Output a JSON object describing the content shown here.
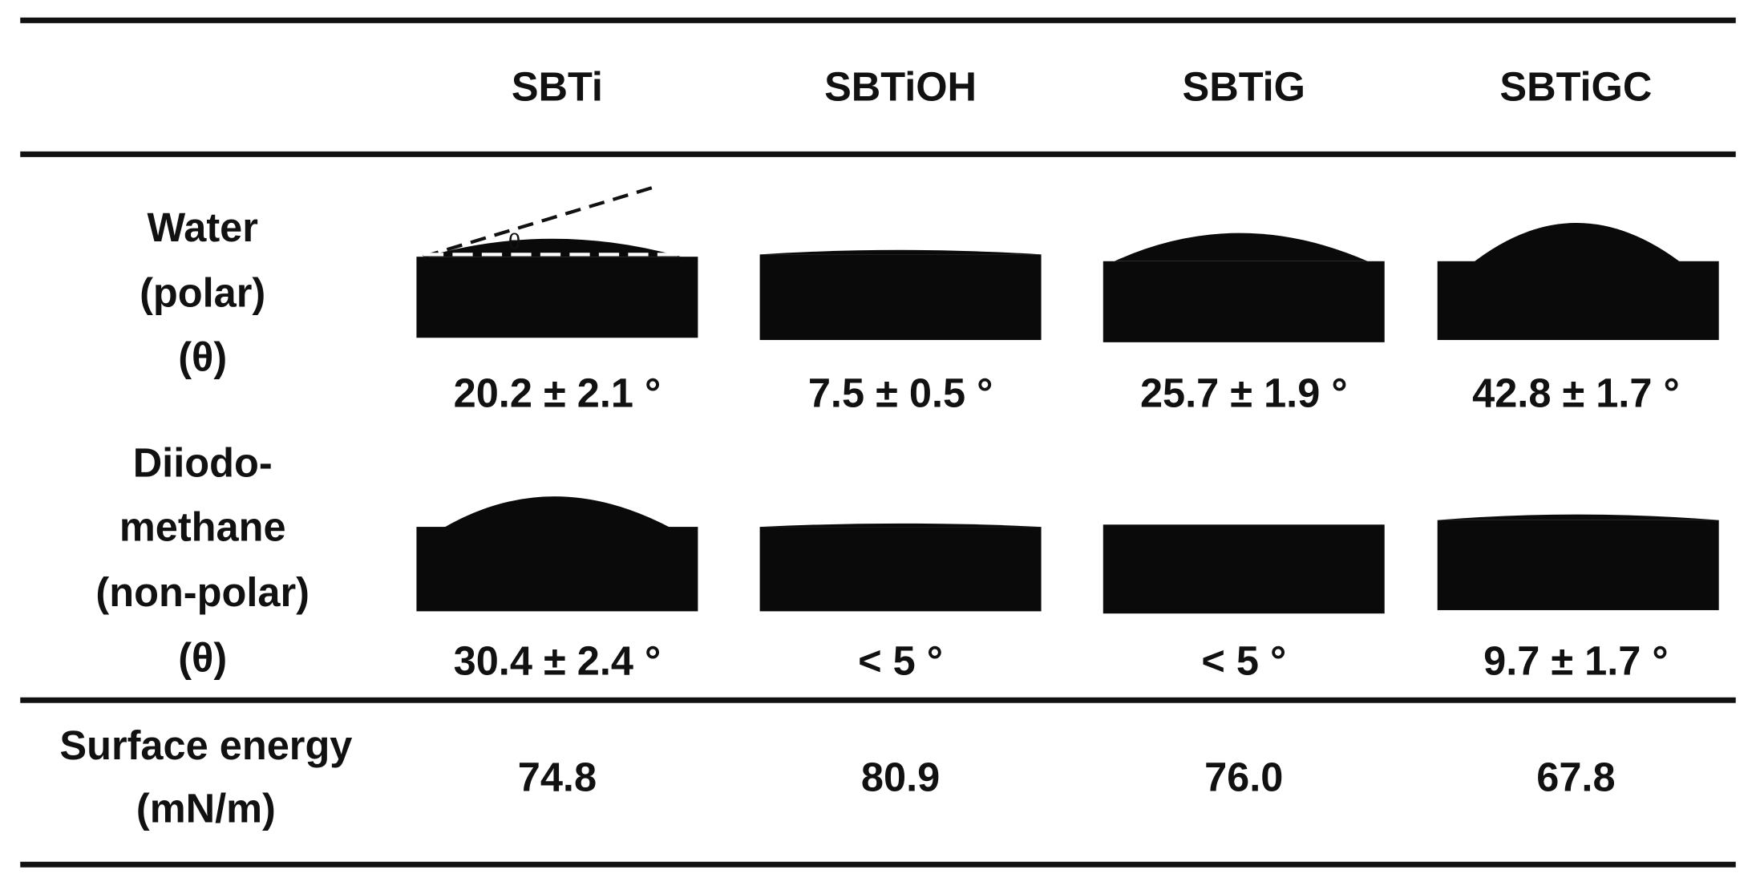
{
  "header": {
    "columns": [
      "SBTi",
      "SBTiOH",
      "SBTiG",
      "SBTiGC"
    ]
  },
  "rows": [
    {
      "label_lines": [
        "Water",
        "(polar)",
        "(θ)"
      ],
      "values": [
        "20.2 ± 2.1 °",
        "7.5 ± 0.5 °",
        "25.7 ± 1.9 °",
        "42.8 ± 1.7 °"
      ]
    },
    {
      "label_lines": [
        "Diiodo-",
        "methane",
        "(non-polar)",
        "(θ)"
      ],
      "values": [
        "30.4 ± 2.4 °",
        "< 5 °",
        "< 5 °",
        "9.7 ± 1.7 °"
      ]
    },
    {
      "label_lines": [
        "Surface energy",
        "(mN/m)"
      ],
      "values": [
        "74.8",
        "80.9",
        "76.0",
        "67.8"
      ]
    }
  ],
  "angle_symbol": "θ"
}
